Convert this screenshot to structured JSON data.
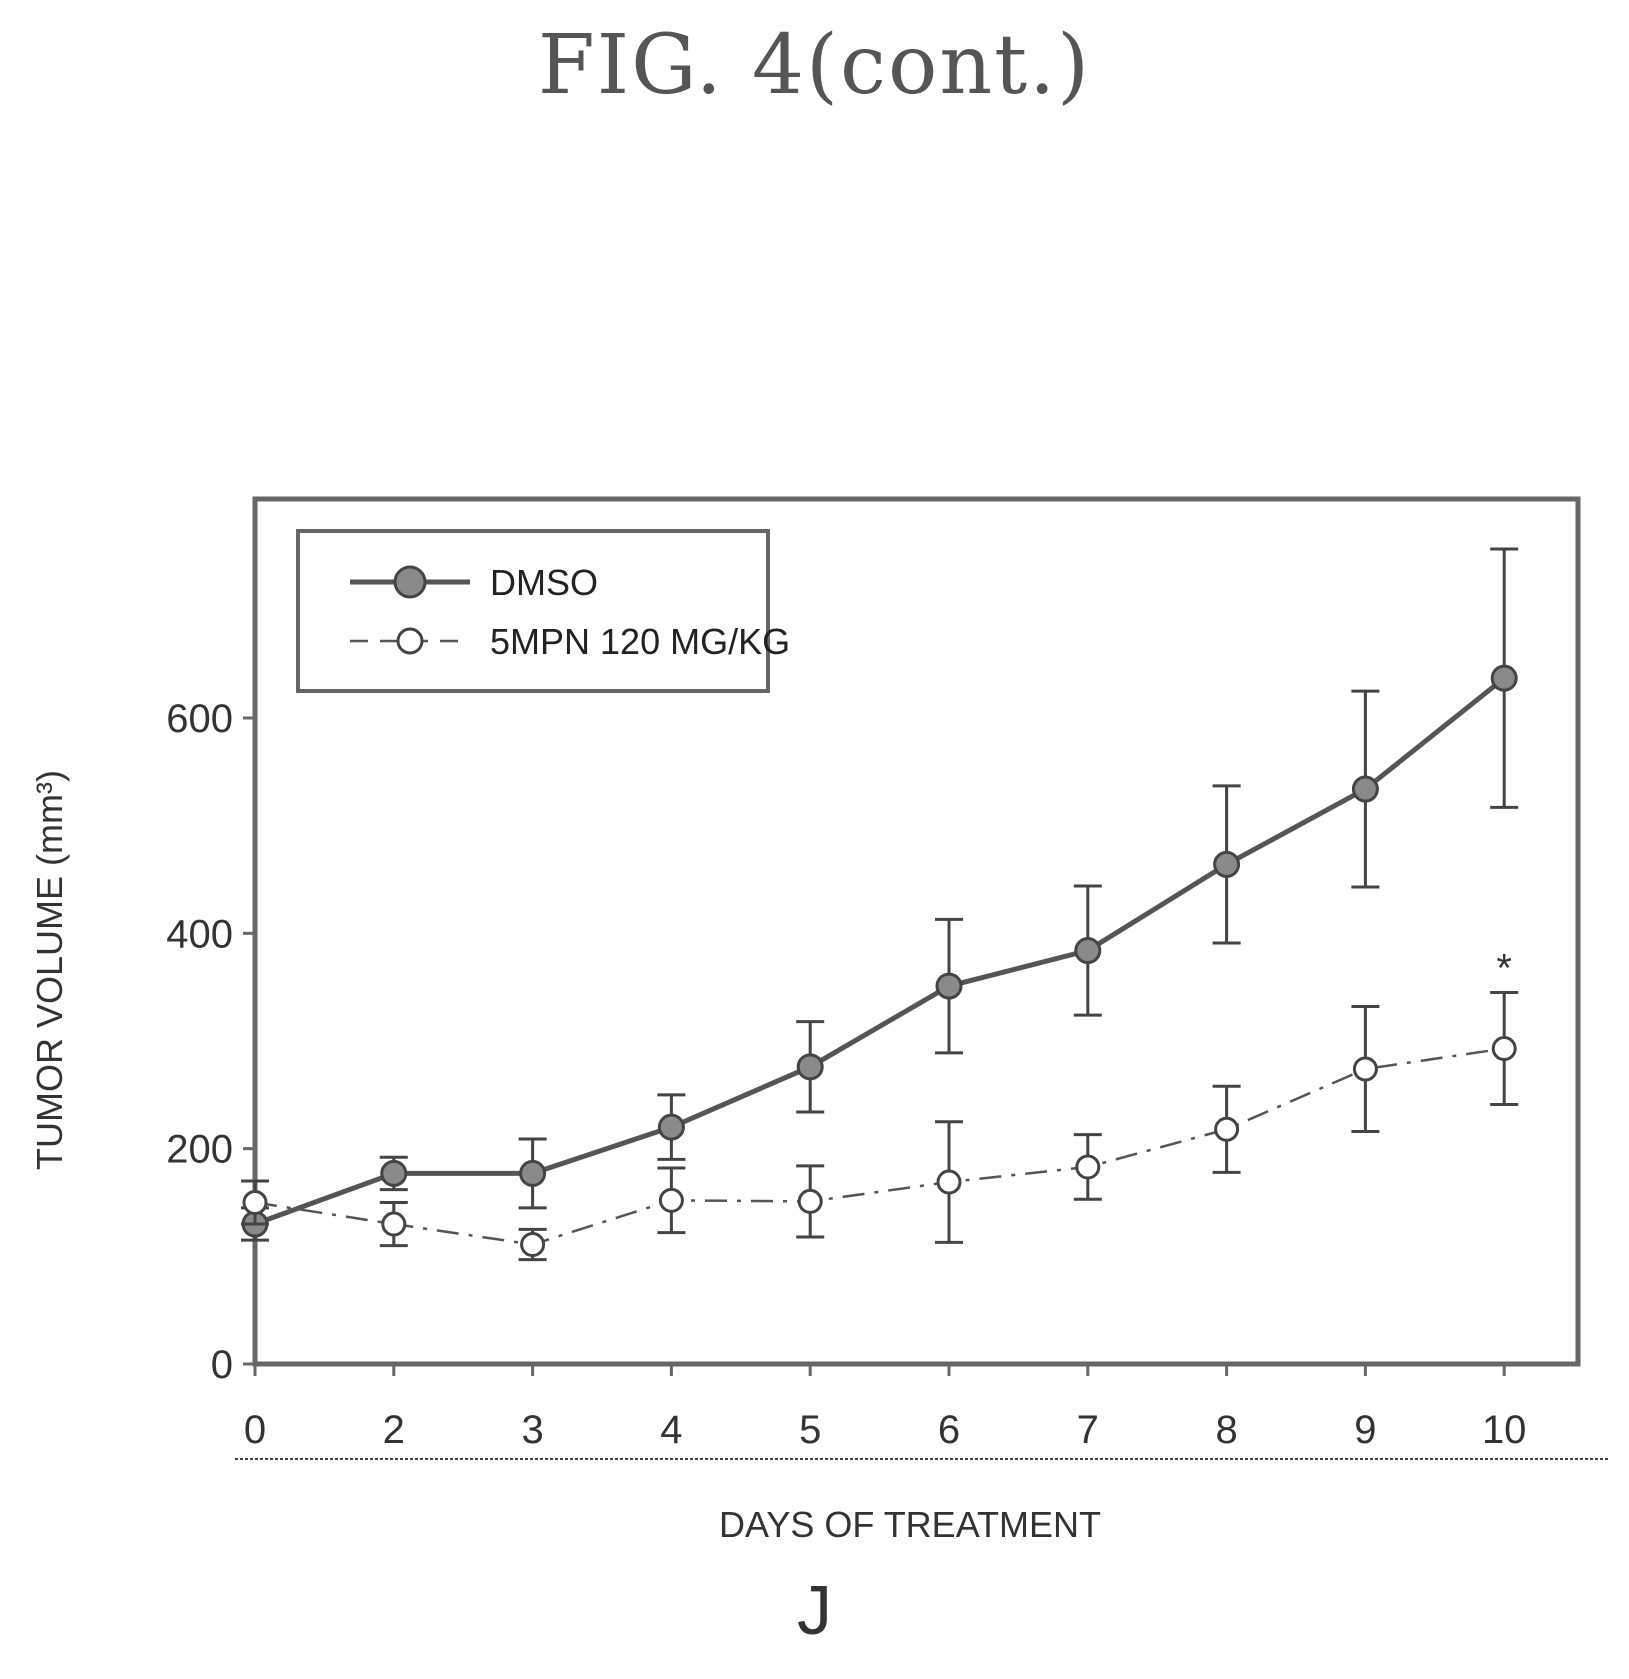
{
  "figure": {
    "title": "FIG. 4(cont.)",
    "panel_label": "J"
  },
  "chart_data": {
    "type": "line",
    "xlabel": "DAYS OF TREATMENT",
    "ylabel": "TUMOR VOLUME (mm³)",
    "categories": [
      "0",
      "2",
      "3",
      "4",
      "5",
      "6",
      "7",
      "8",
      "9",
      "10"
    ],
    "yticks": [
      0,
      200,
      400,
      600
    ],
    "ylim": [
      0,
      800
    ],
    "grid": false,
    "legend_position": "top-left",
    "annotations": [
      {
        "text": "*",
        "category": "10",
        "y": 372
      }
    ],
    "series": [
      {
        "name": "DMSO",
        "style": "solid",
        "marker": "filled-circle",
        "values": [
          130,
          177,
          177,
          220,
          276,
          351,
          384,
          464,
          534,
          637
        ],
        "errors": [
          15,
          15,
          32,
          30,
          42,
          62,
          60,
          73,
          91,
          120
        ]
      },
      {
        "name": "5MPN 120 MG/KG",
        "style": "dashed",
        "marker": "open-circle",
        "values": [
          150,
          130,
          111,
          152,
          151,
          169,
          183,
          218,
          274,
          293
        ],
        "errors": [
          20,
          20,
          14,
          30,
          33,
          56,
          30,
          40,
          58,
          52
        ]
      }
    ],
    "colors": {
      "line": "#555555",
      "marker_fill": "#8a8a8a",
      "axis": "#666666"
    }
  }
}
